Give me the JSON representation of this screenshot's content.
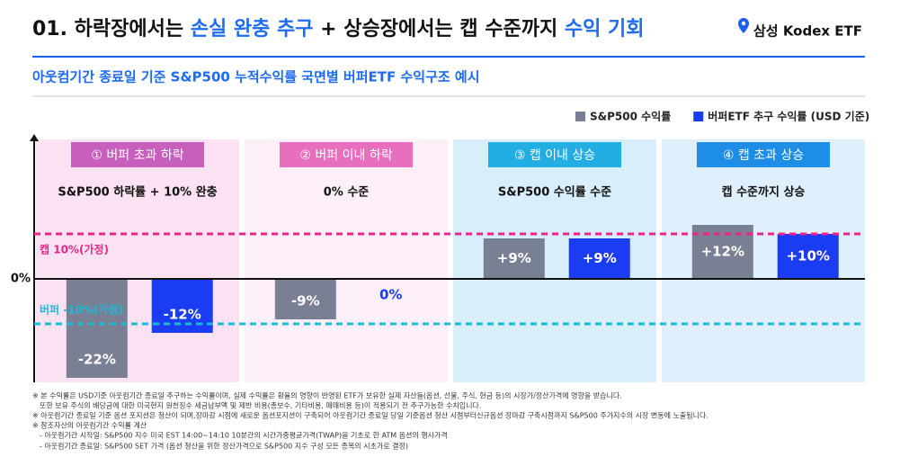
{
  "header": {
    "title_parts": [
      "01. 하락장에서는 ",
      "손실 완충 추구",
      " + 상승장에서는 캡 수준까지 ",
      "수익 기회"
    ],
    "brand": "삼성 Kodex ETF",
    "subtitle": "아웃컴기간 종료일 기준 S&P500 누적수익률 국면별 버퍼ETF 수익구조 예시"
  },
  "chart_data": {
    "type": "bar",
    "categories": [
      "① 버퍼 초과 하락",
      "② 버퍼 이내 하락",
      "③ 캡 이내 상승",
      "④ 캡 초과 상승"
    ],
    "descriptions": [
      "S&P500 하락률 + 10% 완충",
      "0% 수준",
      "S&P500 수익률 수준",
      "캡 수준까지 상승"
    ],
    "panel_colors": [
      "#fbe2f3",
      "#fdeff8",
      "#d8eefb",
      "#e0effc"
    ],
    "header_colors": [
      "#c95fbc",
      "#e86fbd",
      "#22aee2",
      "#1e8de6"
    ],
    "series": [
      {
        "name": "S&P500 수익률",
        "color": "#7a8094",
        "values": [
          -22,
          -9,
          9,
          12
        ],
        "value_labels": [
          "-22%",
          "-9%",
          "+9%",
          "+12%"
        ]
      },
      {
        "name": "버퍼ETF 추구 수익률 (USD 기준)",
        "color": "#1a3cf2",
        "values": [
          -12,
          0,
          9,
          10
        ],
        "value_labels": [
          "-12%",
          "0%",
          "+9%",
          "+10%"
        ]
      }
    ],
    "reference_lines": [
      {
        "value": 10,
        "label": "캡 10%(가정)",
        "color": "#e6288a"
      },
      {
        "value": -10,
        "label": "버퍼 -10%(가정)",
        "color": "#1cbad6"
      }
    ],
    "ylim": [
      -23,
      31
    ],
    "yticks": [
      {
        "value": 0,
        "label": "0%"
      }
    ],
    "legend": "top-right"
  },
  "footnotes": [
    "※ 본 수익률은 USD기준 아웃컴기간 종료일 추구하는 수익률이며, 실제 수익률은 환율의 영향이 반영된 ETF가 보유한 실제 자산들(옵션, 선물, 주식, 현금 등)의 시장가/정산가격에 영향을 받습니다.",
    "또한 보유 주식의 배당금에 대한 미국현지 원천징수 세금납부액 및 제반 비용(총보수, 기타비용, 매매비용 등)이 적용되기 전 추구가능한 수치입니다.",
    "※ 아웃컴기간 종료일 기준 옵션 포지션은 청산이 되며,장마감 시점에 새로운 옵션포지션이 구축되어 아웃컴기간 종료일 당일 기준옵션 청산 시점부터신규옵션 장마감 구축시점까지 S&P500 주가지수의 시장 변동에 노출됩니다.",
    "※ 참조자산의 아웃컴기간 수익률 계산",
    "- 아웃컴기간 시작일: S&P500 지수 미국 EST 14:00~14:10 10분간의 시간가중평균가격(TWAP)을 기초로 한 ATM 옵션의 행사가격",
    "- 아웃컴기간 종료일: S&P500 SET 가격 (옵션 청산을 위한 정산가격으로 S&P500 지수 구성 모든 종목의 시초가로 결정)"
  ]
}
